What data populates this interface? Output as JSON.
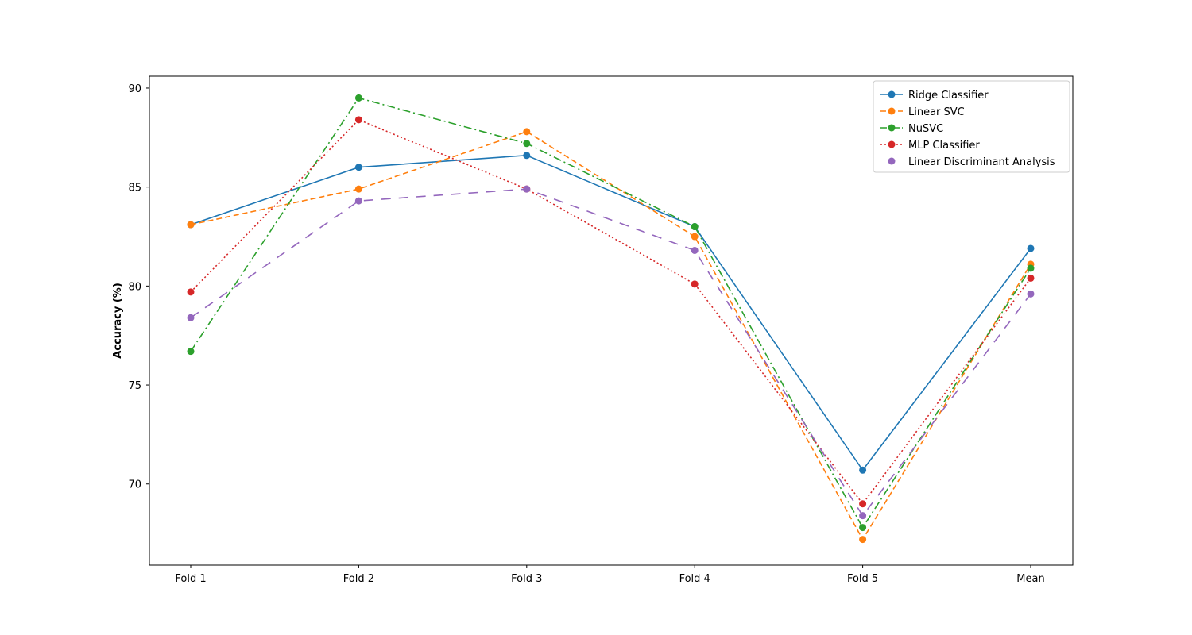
{
  "chart_data": {
    "type": "line",
    "title": "",
    "xlabel": "",
    "ylabel": "Accuracy (%)",
    "categories": [
      "Fold 1",
      "Fold 2",
      "Fold 3",
      "Fold 4",
      "Fold 5",
      "Mean"
    ],
    "ylim": [
      65.9,
      90.6
    ],
    "yticks": [
      70,
      75,
      80,
      85,
      90
    ],
    "grid": false,
    "legend_position": "top-right",
    "series": [
      {
        "name": "Ridge Classifier",
        "color": "#1f77b4",
        "line_style": "solid",
        "marker": "circle",
        "values": [
          83.1,
          86.0,
          86.6,
          83.0,
          70.7,
          81.9
        ]
      },
      {
        "name": "Linear SVC",
        "color": "#ff7f0e",
        "line_style": "dashed",
        "marker": "circle",
        "values": [
          83.1,
          84.9,
          87.8,
          82.5,
          67.2,
          81.1
        ]
      },
      {
        "name": "NuSVC",
        "color": "#2ca02c",
        "line_style": "dash-dot",
        "marker": "circle",
        "values": [
          76.7,
          89.5,
          87.2,
          83.0,
          67.8,
          80.9
        ]
      },
      {
        "name": "MLP Classifier",
        "color": "#d62728",
        "line_style": "dotted",
        "marker": "circle",
        "values": [
          79.7,
          88.4,
          84.9,
          80.1,
          69.0,
          80.4
        ]
      },
      {
        "name": "Linear Discriminant Analysis",
        "color": "#9467bd",
        "line_style": "long-dashed",
        "marker": "circle",
        "values": [
          78.4,
          84.3,
          84.9,
          81.8,
          68.4,
          79.6
        ]
      }
    ]
  }
}
